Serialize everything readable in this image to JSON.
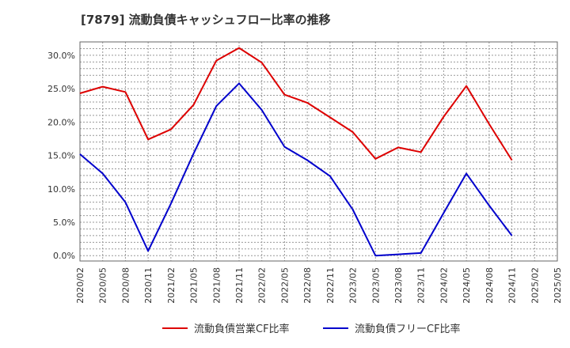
{
  "chart_data": {
    "type": "line",
    "title": "[7879]  流動負債キャッシュフロー比率の推移",
    "xlabel": "",
    "ylabel": "",
    "x": [
      "2020/02",
      "2020/05",
      "2020/08",
      "2020/11",
      "2021/02",
      "2021/05",
      "2021/08",
      "2021/11",
      "2022/02",
      "2022/05",
      "2022/08",
      "2022/11",
      "2023/02",
      "2023/05",
      "2023/08",
      "2023/11",
      "2024/02",
      "2024/05",
      "2024/08",
      "2024/11",
      "2025/02",
      "2025/05"
    ],
    "ylim": [
      -0.8,
      32.0
    ],
    "yticks": [
      0,
      5,
      10,
      15,
      20,
      25,
      30
    ],
    "ytick_labels": [
      "0.0%",
      "5.0%",
      "10.0%",
      "15.0%",
      "20.0%",
      "25.0%",
      "30.0%"
    ],
    "grid": true,
    "legend_position": "bottom",
    "series": [
      {
        "name": "流動負債営業CF比率",
        "color": "#dd0000",
        "values": [
          24.3,
          25.3,
          24.5,
          17.4,
          18.9,
          22.6,
          29.2,
          31.1,
          28.9,
          24.1,
          22.9,
          20.7,
          18.5,
          14.5,
          16.2,
          15.5,
          20.8,
          25.4,
          19.7,
          14.3,
          null,
          null
        ]
      },
      {
        "name": "流動負債フリーCF比率",
        "color": "#0000cc",
        "values": [
          15.2,
          12.3,
          8.0,
          0.7,
          7.8,
          15.3,
          22.4,
          25.8,
          21.8,
          16.3,
          14.3,
          11.9,
          6.9,
          0.0,
          0.2,
          0.4,
          6.4,
          12.3,
          7.5,
          3.0,
          null,
          null
        ]
      }
    ]
  }
}
